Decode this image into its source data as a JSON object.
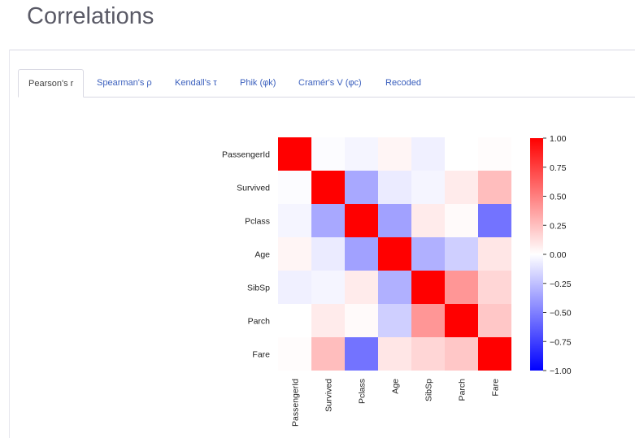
{
  "page": {
    "title": "Correlations"
  },
  "tabs": [
    {
      "label": "Pearson's r",
      "active": true
    },
    {
      "label": "Spearman's ρ",
      "active": false
    },
    {
      "label": "Kendall's τ",
      "active": false
    },
    {
      "label": "Phik (φk)",
      "active": false
    },
    {
      "label": "Cramér's V (φc)",
      "active": false
    },
    {
      "label": "Recoded",
      "active": false
    }
  ],
  "colors": {
    "positive": "#ff0000",
    "negative": "#0000ff",
    "neutral": "#ffffff",
    "tab_link": "#3a5fbd"
  },
  "chart_data": {
    "type": "heatmap",
    "rows": [
      "PassengerId",
      "Survived",
      "Pclass",
      "Age",
      "SibSp",
      "Parch",
      "Fare"
    ],
    "cols": [
      "PassengerId",
      "Survived",
      "Pclass",
      "Age",
      "SibSp",
      "Parch",
      "Fare"
    ],
    "masked": "upper-triangle shown blank where values are near zero",
    "values": [
      [
        1.0,
        -0.01,
        -0.04,
        0.04,
        -0.06,
        -0.0,
        0.01
      ],
      [
        -0.01,
        1.0,
        -0.34,
        -0.08,
        -0.04,
        0.08,
        0.26
      ],
      [
        -0.04,
        -0.34,
        1.0,
        -0.37,
        0.08,
        0.02,
        -0.55
      ],
      [
        0.04,
        -0.08,
        -0.37,
        1.0,
        -0.31,
        -0.19,
        0.1
      ],
      [
        -0.06,
        -0.04,
        0.08,
        -0.31,
        1.0,
        0.41,
        0.16
      ],
      [
        -0.0,
        0.08,
        0.02,
        -0.19,
        0.41,
        1.0,
        0.22
      ],
      [
        0.01,
        0.26,
        -0.55,
        0.1,
        0.16,
        0.22,
        1.0
      ]
    ],
    "colorbar": {
      "min": -1.0,
      "max": 1.0,
      "ticks": [
        "1.00",
        "0.75",
        "0.50",
        "0.25",
        "0.00",
        "−0.25",
        "−0.50",
        "−0.75",
        "−1.00"
      ]
    }
  }
}
